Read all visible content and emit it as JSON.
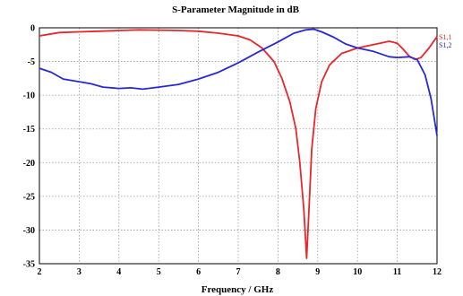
{
  "chart_data": {
    "type": "line",
    "title": "S-Parameter Magnitude in dB",
    "xlabel": "Frequency / GHz",
    "ylabel": "",
    "xlim": [
      2,
      12
    ],
    "ylim": [
      -35,
      0
    ],
    "xticks": [
      "2",
      "3",
      "4",
      "5",
      "6",
      "7",
      "8",
      "9",
      "10",
      "11",
      "12"
    ],
    "yticks": [
      "0",
      "-5",
      "-10",
      "-15",
      "-20",
      "-25",
      "-30",
      "-35"
    ],
    "grid": true,
    "legend_position": "right",
    "series": [
      {
        "name": "S1,1",
        "color": "#e8262b",
        "points": [
          [
            2.0,
            -1.2
          ],
          [
            2.5,
            -0.7
          ],
          [
            3.0,
            -0.6
          ],
          [
            3.5,
            -0.5
          ],
          [
            4.0,
            -0.4
          ],
          [
            4.5,
            -0.3
          ],
          [
            5.0,
            -0.35
          ],
          [
            5.5,
            -0.4
          ],
          [
            6.0,
            -0.5
          ],
          [
            6.5,
            -0.8
          ],
          [
            7.0,
            -1.2
          ],
          [
            7.3,
            -1.8
          ],
          [
            7.6,
            -3.0
          ],
          [
            7.9,
            -5.0
          ],
          [
            8.1,
            -7.5
          ],
          [
            8.3,
            -11.0
          ],
          [
            8.45,
            -15.0
          ],
          [
            8.55,
            -20.0
          ],
          [
            8.65,
            -27.0
          ],
          [
            8.72,
            -34.2
          ],
          [
            8.78,
            -27.0
          ],
          [
            8.85,
            -18.0
          ],
          [
            8.95,
            -12.0
          ],
          [
            9.1,
            -8.0
          ],
          [
            9.3,
            -5.5
          ],
          [
            9.6,
            -3.8
          ],
          [
            10.0,
            -3.0
          ],
          [
            10.4,
            -2.5
          ],
          [
            10.8,
            -2.0
          ],
          [
            11.0,
            -2.3
          ],
          [
            11.15,
            -3.2
          ],
          [
            11.3,
            -4.2
          ],
          [
            11.45,
            -4.7
          ],
          [
            11.6,
            -4.4
          ],
          [
            11.8,
            -3.0
          ],
          [
            12.0,
            -1.3
          ]
        ]
      },
      {
        "name": "S1,2",
        "color": "#2828d8",
        "points": [
          [
            2.0,
            -6.0
          ],
          [
            2.3,
            -6.6
          ],
          [
            2.6,
            -7.6
          ],
          [
            3.0,
            -8.0
          ],
          [
            3.3,
            -8.3
          ],
          [
            3.6,
            -8.8
          ],
          [
            4.0,
            -9.0
          ],
          [
            4.3,
            -8.9
          ],
          [
            4.6,
            -9.1
          ],
          [
            5.0,
            -8.8
          ],
          [
            5.5,
            -8.4
          ],
          [
            6.0,
            -7.6
          ],
          [
            6.5,
            -6.6
          ],
          [
            7.0,
            -5.2
          ],
          [
            7.5,
            -3.6
          ],
          [
            8.0,
            -2.1
          ],
          [
            8.4,
            -0.8
          ],
          [
            8.7,
            -0.3
          ],
          [
            8.9,
            -0.2
          ],
          [
            9.1,
            -0.6
          ],
          [
            9.4,
            -1.4
          ],
          [
            9.7,
            -2.4
          ],
          [
            10.0,
            -3.0
          ],
          [
            10.4,
            -3.5
          ],
          [
            10.8,
            -4.3
          ],
          [
            11.0,
            -4.4
          ],
          [
            11.3,
            -4.3
          ],
          [
            11.5,
            -4.7
          ],
          [
            11.7,
            -7.0
          ],
          [
            11.85,
            -10.5
          ],
          [
            12.0,
            -16.0
          ]
        ]
      }
    ]
  }
}
